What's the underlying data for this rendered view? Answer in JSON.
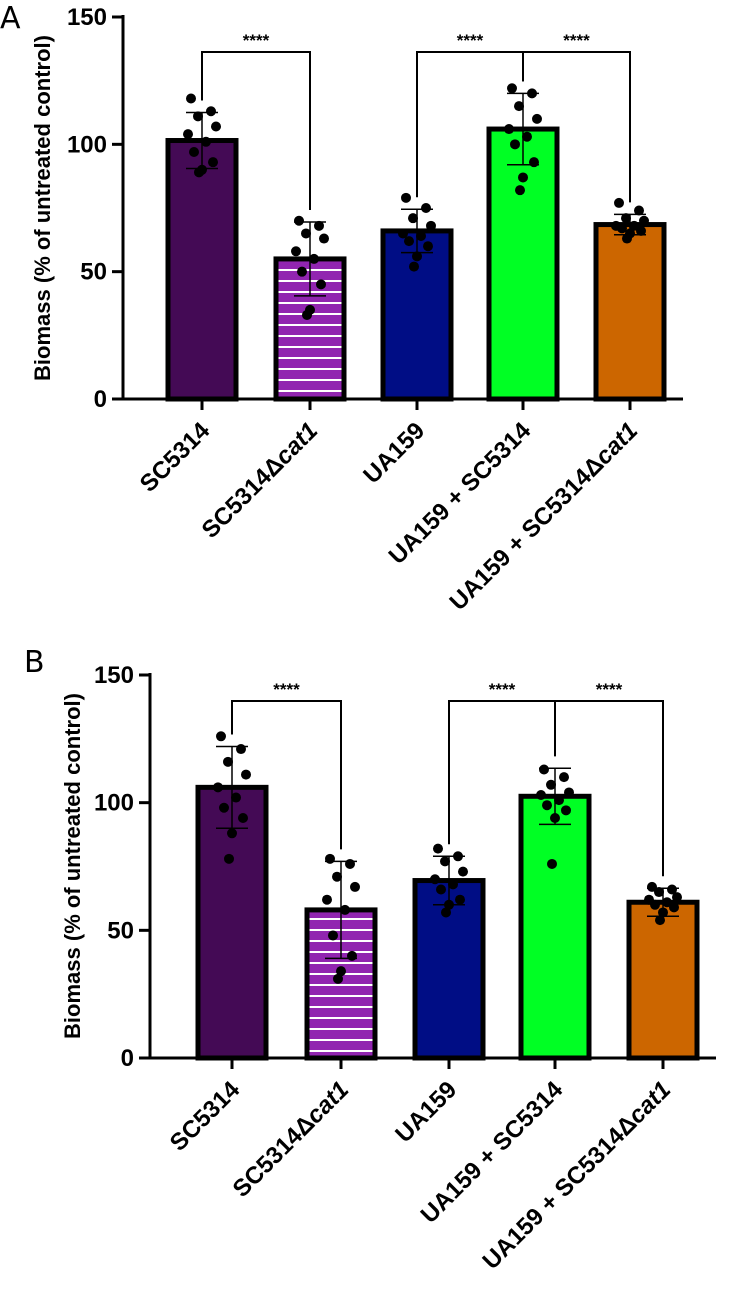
{
  "chart_data": [
    {
      "panel": "A",
      "type": "bar",
      "ylabel": "Biomass (% of untreated control)",
      "ylim": [
        0,
        150
      ],
      "yticks": [
        0,
        50,
        100,
        150
      ],
      "categories": [
        {
          "name": "SC5314",
          "parts": [
            {
              "t": "SC5314",
              "i": false
            }
          ]
        },
        {
          "name": "SC5314Δcat1",
          "parts": [
            {
              "t": "SC5314Δ",
              "i": false
            },
            {
              "t": "cat1",
              "i": true
            }
          ]
        },
        {
          "name": "UA159",
          "parts": [
            {
              "t": "UA159",
              "i": false
            }
          ]
        },
        {
          "name": "UA159 + SC5314",
          "parts": [
            {
              "t": "UA159 + SC5314",
              "i": false
            }
          ]
        },
        {
          "name": "UA159 + SC5314Δcat1",
          "parts": [
            {
              "t": "UA159 + SC5314Δ",
              "i": false
            },
            {
              "t": "cat1",
              "i": true
            }
          ]
        }
      ],
      "bar_colors": [
        "#440a55",
        "#9125b0",
        "#000d85",
        "#00ff24",
        "#cc6600"
      ],
      "bar_patterns": [
        "solid",
        "horizontal-stripes",
        "solid",
        "solid",
        "solid"
      ],
      "values": [
        101.5,
        55,
        66,
        106,
        68.5
      ],
      "sd": [
        11,
        14.5,
        8.5,
        14,
        4
      ],
      "points": [
        [
          118,
          113,
          111,
          107,
          104,
          101,
          97,
          93,
          90,
          89
        ],
        [
          70,
          68,
          65,
          63,
          58,
          55,
          50,
          45,
          35,
          33
        ],
        [
          79,
          75,
          71,
          68,
          65,
          64,
          62,
          60,
          56,
          52
        ],
        [
          122,
          120,
          115,
          110,
          106,
          103,
          100,
          93,
          87,
          82
        ],
        [
          77,
          74,
          71,
          70,
          68,
          68,
          67,
          66,
          65,
          63
        ]
      ],
      "significance": [
        {
          "from": 0,
          "to": 1,
          "label": "****"
        },
        {
          "from": 2,
          "to": 3,
          "label": "****"
        },
        {
          "from": 3,
          "to": 4,
          "label": "****"
        }
      ]
    },
    {
      "panel": "B",
      "type": "bar",
      "ylabel": "Biomass (% of untreated control)",
      "ylim": [
        0,
        150
      ],
      "yticks": [
        0,
        50,
        100,
        150
      ],
      "categories": [
        {
          "name": "SC5314",
          "parts": [
            {
              "t": "SC5314",
              "i": false
            }
          ]
        },
        {
          "name": "SC5314Δcat1",
          "parts": [
            {
              "t": "SC5314Δ",
              "i": false
            },
            {
              "t": "cat1",
              "i": true
            }
          ]
        },
        {
          "name": "UA159",
          "parts": [
            {
              "t": "UA159",
              "i": false
            }
          ]
        },
        {
          "name": "UA159 + SC5314",
          "parts": [
            {
              "t": "UA159 + SC5314",
              "i": false
            }
          ]
        },
        {
          "name": "UA159 + SC5314Δcat1",
          "parts": [
            {
              "t": "UA159 + SC5314Δ",
              "i": false
            },
            {
              "t": "cat1",
              "i": true
            }
          ]
        }
      ],
      "bar_colors": [
        "#440a55",
        "#9125b0",
        "#000d85",
        "#00ff24",
        "#cc6600"
      ],
      "bar_patterns": [
        "solid",
        "horizontal-stripes",
        "solid",
        "solid",
        "solid"
      ],
      "values": [
        106,
        58,
        69.5,
        102.5,
        61
      ],
      "sd": [
        16,
        19,
        9.5,
        11,
        5.5
      ],
      "points": [
        [
          126,
          121,
          116,
          111,
          106,
          102,
          98,
          94,
          88,
          78
        ],
        [
          78,
          76,
          71,
          67,
          62,
          58,
          48,
          40,
          34,
          31
        ],
        [
          82,
          79,
          77,
          73,
          70,
          68,
          66,
          62,
          60,
          57
        ],
        [
          113,
          110,
          107,
          104,
          103,
          101,
          99,
          97,
          94,
          76
        ],
        [
          67,
          66,
          65,
          63,
          62,
          61,
          60,
          59,
          57,
          54
        ]
      ],
      "significance": [
        {
          "from": 0,
          "to": 1,
          "label": "****"
        },
        {
          "from": 2,
          "to": 3,
          "label": "****"
        },
        {
          "from": 3,
          "to": 4,
          "label": "****"
        }
      ]
    }
  ]
}
